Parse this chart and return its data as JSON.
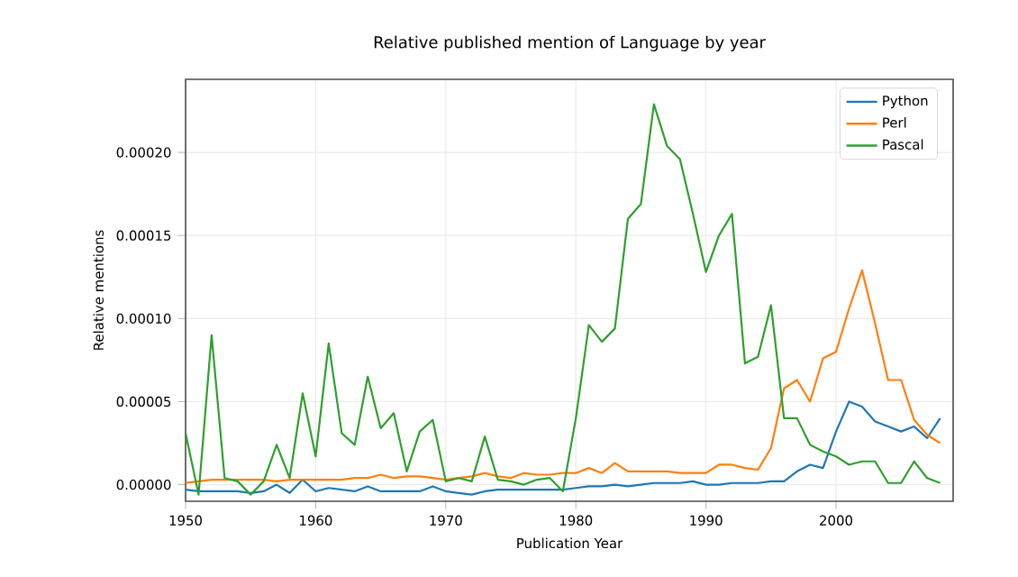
{
  "chart_data": {
    "type": "line",
    "title": "Relative published mention of Language by year",
    "xlabel": "Publication Year",
    "ylabel": "Relative mentions",
    "x": [
      1950,
      1951,
      1952,
      1953,
      1954,
      1955,
      1956,
      1957,
      1958,
      1959,
      1960,
      1961,
      1962,
      1963,
      1964,
      1965,
      1966,
      1967,
      1968,
      1969,
      1970,
      1971,
      1972,
      1973,
      1974,
      1975,
      1976,
      1977,
      1978,
      1979,
      1980,
      1981,
      1982,
      1983,
      1984,
      1985,
      1986,
      1987,
      1988,
      1989,
      1990,
      1991,
      1992,
      1993,
      1994,
      1995,
      1996,
      1997,
      1998,
      1999,
      2000,
      2001,
      2002,
      2003,
      2004,
      2005,
      2006,
      2007,
      2008
    ],
    "series": [
      {
        "name": "Python",
        "color": "#1f77b4",
        "values": [
          -3e-06,
          -4e-06,
          -4e-06,
          -4e-06,
          -4e-06,
          -5e-06,
          -4e-06,
          0,
          -5e-06,
          3e-06,
          -4e-06,
          -2e-06,
          -3e-06,
          -4e-06,
          -1e-06,
          -4e-06,
          -4e-06,
          -4e-06,
          -4e-06,
          -1e-06,
          -4e-06,
          -5e-06,
          -6e-06,
          -4e-06,
          -3e-06,
          -3e-06,
          -3e-06,
          -3e-06,
          -3e-06,
          -3e-06,
          -2e-06,
          -1e-06,
          -1e-06,
          0,
          -1e-06,
          0,
          1e-06,
          1e-06,
          1e-06,
          2e-06,
          0,
          0,
          1e-06,
          1e-06,
          1e-06,
          2e-06,
          2e-06,
          8e-06,
          1.2e-05,
          1e-05,
          3.2e-05,
          5e-05,
          4.7e-05,
          3.8e-05,
          3.5e-05,
          3.2e-05,
          3.5e-05,
          2.8e-05,
          4e-05
        ]
      },
      {
        "name": "Perl",
        "color": "#ff7f0e",
        "values": [
          1e-06,
          2e-06,
          3e-06,
          3e-06,
          3e-06,
          3e-06,
          3e-06,
          2e-06,
          3e-06,
          3e-06,
          3e-06,
          3e-06,
          3e-06,
          4e-06,
          4e-06,
          6e-06,
          4e-06,
          5e-06,
          5e-06,
          4e-06,
          3e-06,
          4e-06,
          5e-06,
          7e-06,
          5e-06,
          4e-06,
          7e-06,
          6e-06,
          6e-06,
          7e-06,
          7e-06,
          1e-05,
          7e-06,
          1.3e-05,
          8e-06,
          8e-06,
          8e-06,
          8e-06,
          7e-06,
          7e-06,
          7e-06,
          1.2e-05,
          1.2e-05,
          1e-05,
          9e-06,
          2.2e-05,
          5.8e-05,
          6.3e-05,
          5e-05,
          7.6e-05,
          8e-05,
          0.000106,
          0.000129,
          9.7e-05,
          6.3e-05,
          6.3e-05,
          3.9e-05,
          3e-05,
          2.5e-05
        ]
      },
      {
        "name": "Pascal",
        "color": "#2ca02c",
        "values": [
          3.1e-05,
          -6e-06,
          9e-05,
          4e-06,
          2e-06,
          -6e-06,
          2e-06,
          2.4e-05,
          4e-06,
          5.5e-05,
          1.7e-05,
          8.5e-05,
          3.1e-05,
          2.4e-05,
          6.5e-05,
          3.4e-05,
          4.3e-05,
          8e-06,
          3.2e-05,
          3.9e-05,
          2e-06,
          4e-06,
          2e-06,
          2.9e-05,
          3e-06,
          2e-06,
          0,
          3e-06,
          4e-06,
          -4e-06,
          4e-05,
          9.6e-05,
          8.6e-05,
          9.4e-05,
          0.00016,
          0.000169,
          0.000229,
          0.000204,
          0.000196,
          0.000163,
          0.000128,
          0.00015,
          0.000163,
          7.3e-05,
          7.7e-05,
          0.000108,
          4e-05,
          4e-05,
          2.4e-05,
          2e-05,
          1.7e-05,
          1.2e-05,
          1.4e-05,
          1.4e-05,
          1e-06,
          1e-06,
          1.4e-05,
          4e-06,
          1e-06
        ]
      }
    ],
    "xlim": [
      1950,
      2009
    ],
    "ylim": [
      -1e-05,
      0.000244
    ],
    "xticks": [
      1950,
      1960,
      1970,
      1980,
      1990,
      2000
    ],
    "yticks": [
      {
        "value": 0,
        "label": "0.00000"
      },
      {
        "value": 5e-05,
        "label": "0.00005"
      },
      {
        "value": 0.0001,
        "label": "0.00010"
      },
      {
        "value": 0.00015,
        "label": "0.00015"
      },
      {
        "value": 0.0002,
        "label": "0.00020"
      }
    ],
    "grid": true,
    "legend": "top right"
  }
}
